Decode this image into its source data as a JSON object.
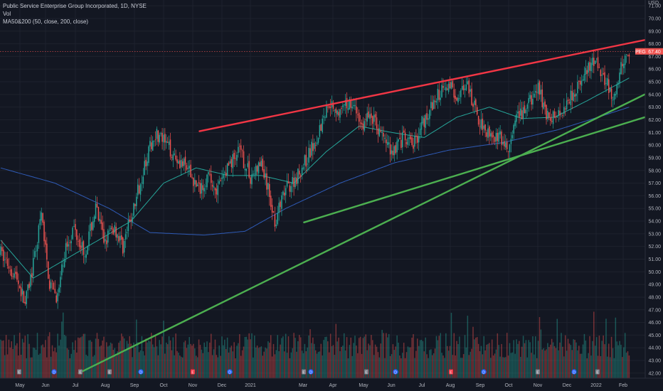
{
  "legend": {
    "symbol_line": "Public Service Enterprise Group Incorporated, 1D, NYSE",
    "vol_label": "Vol",
    "ma_label": "MA50&200 (50, close, 200, close)"
  },
  "currency": {
    "code": "USD"
  },
  "price_tags": {
    "ticker": "PEG",
    "last_price": "67.40"
  },
  "colors": {
    "background": "#131722",
    "up": "#26a69a",
    "down": "#ef5350",
    "ma50": "#26a69a",
    "ma200": "#2f5bb7",
    "resistance_line": "#f23645",
    "support_line": "#4caf50"
  },
  "chart_data": {
    "type": "candlestick",
    "symbol": "PEG",
    "interval": "1D",
    "exchange": "NYSE",
    "y_axis": {
      "ticks": [
        "42.00",
        "43.00",
        "44.00",
        "45.00",
        "46.00",
        "47.00",
        "48.00",
        "49.00",
        "50.00",
        "51.00",
        "52.00",
        "53.00",
        "54.00",
        "55.00",
        "56.00",
        "57.00",
        "58.00",
        "59.00",
        "60.00",
        "61.00",
        "62.00",
        "63.00",
        "64.00",
        "65.00",
        "66.00",
        "67.00",
        "68.00",
        "69.00",
        "70.00",
        "71.00"
      ],
      "range": [
        41.6,
        71.4
      ]
    },
    "x_axis": {
      "ticks": [
        "May",
        "Jun",
        "Jul",
        "Aug",
        "Sep",
        "Oct",
        "Nov",
        "Dec",
        "2021",
        "Mar",
        "Apr",
        "May",
        "Jun",
        "Jul",
        "Aug",
        "Sep",
        "Oct",
        "Nov",
        "Dec",
        "2022",
        "Feb"
      ]
    },
    "price_anchors": [
      {
        "t": 0,
        "p": 51.5
      },
      {
        "t": 12,
        "p": 49.5
      },
      {
        "t": 18,
        "p": 47.5
      },
      {
        "t": 24,
        "p": 50.5
      },
      {
        "t": 30,
        "p": 54.5
      },
      {
        "t": 36,
        "p": 49.0
      },
      {
        "t": 42,
        "p": 48.0
      },
      {
        "t": 48,
        "p": 52.0
      },
      {
        "t": 54,
        "p": 53.5
      },
      {
        "t": 62,
        "p": 51.5
      },
      {
        "t": 70,
        "p": 55.0
      },
      {
        "t": 76,
        "p": 52.5
      },
      {
        "t": 84,
        "p": 53.5
      },
      {
        "t": 90,
        "p": 52.0
      },
      {
        "t": 98,
        "p": 55.0
      },
      {
        "t": 106,
        "p": 58.5
      },
      {
        "t": 114,
        "p": 61.0
      },
      {
        "t": 122,
        "p": 60.0
      },
      {
        "t": 130,
        "p": 59.0
      },
      {
        "t": 138,
        "p": 58.0
      },
      {
        "t": 146,
        "p": 56.5
      },
      {
        "t": 152,
        "p": 57.5
      },
      {
        "t": 160,
        "p": 56.5
      },
      {
        "t": 168,
        "p": 58.5
      },
      {
        "t": 176,
        "p": 59.5
      },
      {
        "t": 184,
        "p": 57.5
      },
      {
        "t": 192,
        "p": 58.5
      },
      {
        "t": 198,
        "p": 56.0
      },
      {
        "t": 202,
        "p": 54.0
      },
      {
        "t": 210,
        "p": 56.5
      },
      {
        "t": 218,
        "p": 57.5
      },
      {
        "t": 226,
        "p": 59.0
      },
      {
        "t": 234,
        "p": 61.0
      },
      {
        "t": 242,
        "p": 63.5
      },
      {
        "t": 250,
        "p": 62.5
      },
      {
        "t": 258,
        "p": 63.5
      },
      {
        "t": 266,
        "p": 61.5
      },
      {
        "t": 272,
        "p": 62.5
      },
      {
        "t": 280,
        "p": 61.0
      },
      {
        "t": 288,
        "p": 59.5
      },
      {
        "t": 296,
        "p": 60.5
      },
      {
        "t": 304,
        "p": 60.0
      },
      {
        "t": 312,
        "p": 62.0
      },
      {
        "t": 320,
        "p": 63.5
      },
      {
        "t": 328,
        "p": 65.0
      },
      {
        "t": 336,
        "p": 64.0
      },
      {
        "t": 344,
        "p": 64.5
      },
      {
        "t": 352,
        "p": 62.0
      },
      {
        "t": 360,
        "p": 61.0
      },
      {
        "t": 368,
        "p": 60.5
      },
      {
        "t": 374,
        "p": 59.5
      },
      {
        "t": 380,
        "p": 62.0
      },
      {
        "t": 388,
        "p": 63.0
      },
      {
        "t": 396,
        "p": 64.5
      },
      {
        "t": 404,
        "p": 62.0
      },
      {
        "t": 412,
        "p": 62.5
      },
      {
        "t": 420,
        "p": 64.0
      },
      {
        "t": 428,
        "p": 65.0
      },
      {
        "t": 436,
        "p": 66.5
      },
      {
        "t": 442,
        "p": 66.0
      },
      {
        "t": 448,
        "p": 64.5
      },
      {
        "t": 452,
        "p": 63.5
      },
      {
        "t": 458,
        "p": 66.5
      },
      {
        "t": 463,
        "p": 67.4
      }
    ],
    "ma50_anchors": [
      {
        "t": 0,
        "p": 52.5
      },
      {
        "t": 24,
        "p": 49.5
      },
      {
        "t": 48,
        "p": 51.0
      },
      {
        "t": 72,
        "p": 52.5
      },
      {
        "t": 96,
        "p": 54.0
      },
      {
        "t": 120,
        "p": 57.0
      },
      {
        "t": 144,
        "p": 58.2
      },
      {
        "t": 168,
        "p": 57.6
      },
      {
        "t": 192,
        "p": 57.6
      },
      {
        "t": 216,
        "p": 57.0
      },
      {
        "t": 240,
        "p": 59.5
      },
      {
        "t": 264,
        "p": 61.5
      },
      {
        "t": 288,
        "p": 61.0
      },
      {
        "t": 312,
        "p": 60.6
      },
      {
        "t": 336,
        "p": 62.2
      },
      {
        "t": 360,
        "p": 63.0
      },
      {
        "t": 384,
        "p": 62.1
      },
      {
        "t": 408,
        "p": 62.2
      },
      {
        "t": 432,
        "p": 63.5
      },
      {
        "t": 463,
        "p": 65.3
      }
    ],
    "ma200_anchors": [
      {
        "t": 0,
        "p": 58.2
      },
      {
        "t": 40,
        "p": 57.0
      },
      {
        "t": 80,
        "p": 55.0
      },
      {
        "t": 110,
        "p": 53.1
      },
      {
        "t": 150,
        "p": 52.9
      },
      {
        "t": 180,
        "p": 53.2
      },
      {
        "t": 210,
        "p": 55.0
      },
      {
        "t": 250,
        "p": 57.0
      },
      {
        "t": 290,
        "p": 58.6
      },
      {
        "t": 330,
        "p": 59.6
      },
      {
        "t": 370,
        "p": 60.2
      },
      {
        "t": 410,
        "p": 61.2
      },
      {
        "t": 440,
        "p": 62.2
      },
      {
        "t": 463,
        "p": 63.0
      }
    ],
    "trendlines": [
      {
        "name": "upper resistance",
        "color": "resistance",
        "from": {
          "t": 147,
          "p": 61.1
        },
        "to": {
          "t": 475,
          "p": 68.3
        }
      },
      {
        "name": "long support",
        "color": "support",
        "from": {
          "t": 58,
          "p": 42.0
        },
        "to": {
          "t": 475,
          "p": 64.0
        }
      },
      {
        "name": "short support",
        "color": "support",
        "from": {
          "t": 224,
          "p": 53.9
        },
        "to": {
          "t": 475,
          "p": 62.2
        }
      }
    ],
    "volume": {
      "scale": "relative, 0-1"
    }
  }
}
